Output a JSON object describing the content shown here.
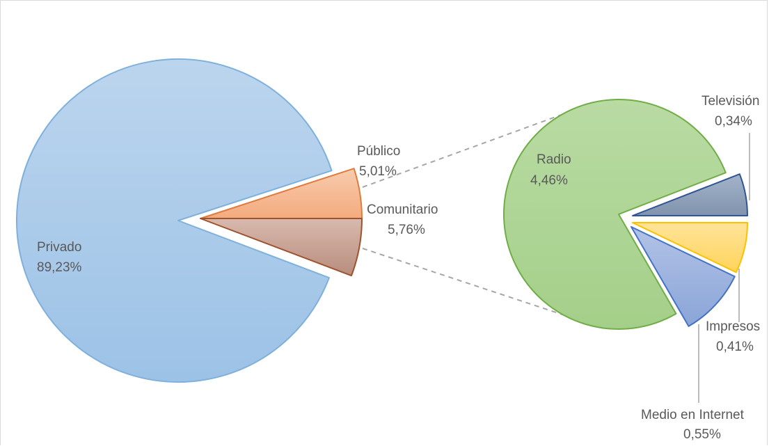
{
  "chart_data": {
    "type": "pie-of-pie",
    "primary": {
      "slices": [
        {
          "name": "Privado",
          "value": 89.23,
          "label": "89,23%",
          "color": "#9dc3e6",
          "stroke": "#7fb0dc"
        },
        {
          "name": "Público",
          "value": 5.01,
          "label": "5,01%",
          "color": "#f4b183",
          "stroke": "#e07b3e"
        },
        {
          "name": "Comunitario",
          "value": 5.76,
          "label": "5,76%",
          "color": "#c19a8c",
          "stroke": "#a0522d"
        }
      ]
    },
    "secondary": {
      "slices": [
        {
          "name": "Radio",
          "value": 4.46,
          "label": "4,46%",
          "color": "#a9d18e",
          "stroke": "#70ad47"
        },
        {
          "name": "Televisión",
          "value": 0.34,
          "label": "0,34%",
          "color": "#8497b0",
          "stroke": "#2f5597"
        },
        {
          "name": "Impresos",
          "value": 0.41,
          "label": "0,41%",
          "color": "#ffd966",
          "stroke": "#ffc000"
        },
        {
          "name": "Medio en Internet",
          "value": 0.55,
          "label": "0,55%",
          "color": "#8faadc",
          "stroke": "#4472c4"
        }
      ]
    },
    "connector": "dashed"
  }
}
